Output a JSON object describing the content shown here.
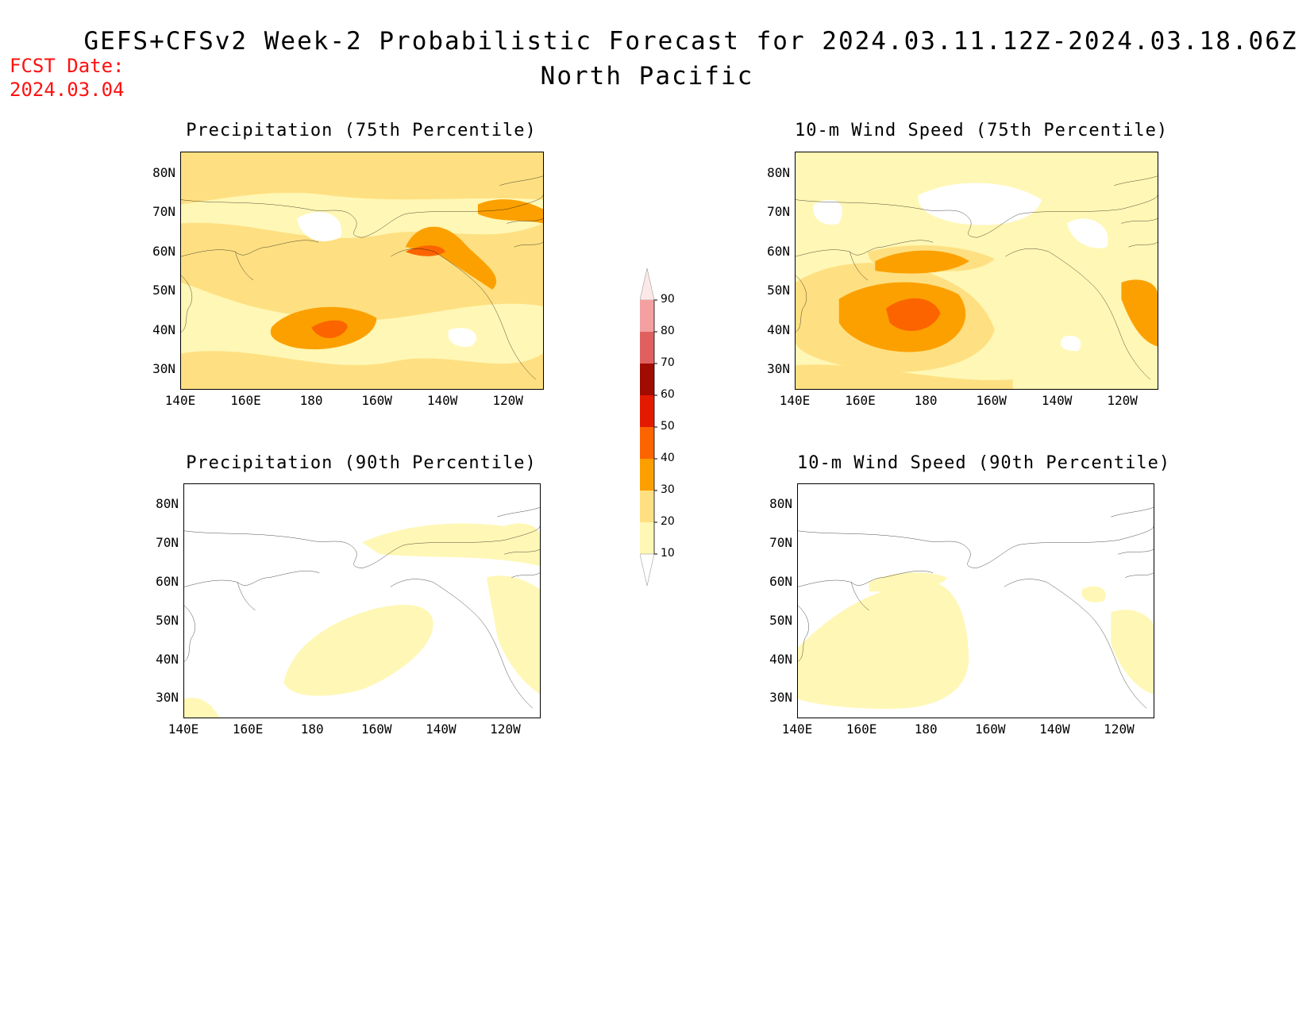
{
  "header": {
    "title_line1": "GEFS+CFSv2 Week-2 Probabilistic Forecast for 2024.03.11.12Z-2024.03.18.06Z",
    "title_line2": "North Pacific",
    "fcst_label": "FCST Date:",
    "fcst_date": "2024.03.04"
  },
  "lat_labels": [
    "80N",
    "70N",
    "60N",
    "50N",
    "40N",
    "30N"
  ],
  "lon_labels": [
    "140E",
    "160E",
    "180",
    "160W",
    "140W",
    "120W"
  ],
  "panels": [
    {
      "id": "precip75",
      "title": "Precipitation (75th Percentile)",
      "pattern": "precip75"
    },
    {
      "id": "wind75",
      "title": "10-m Wind Speed (75th Percentile)",
      "pattern": "wind75"
    },
    {
      "id": "precip90",
      "title": "Precipitation (90th Percentile)",
      "pattern": "precip90"
    },
    {
      "id": "wind90",
      "title": "10-m Wind Speed (90th Percentile)",
      "pattern": "wind90"
    }
  ],
  "colorbar": {
    "levels": [
      "10",
      "20",
      "30",
      "40",
      "50",
      "60",
      "70",
      "80",
      "90"
    ],
    "colors": [
      "#ffffff",
      "#fff7b5",
      "#fee082",
      "#fca000",
      "#fc6400",
      "#e41a00",
      "#a00c00",
      "#e06060",
      "#f4a0a0",
      "#fde8e8"
    ]
  }
}
